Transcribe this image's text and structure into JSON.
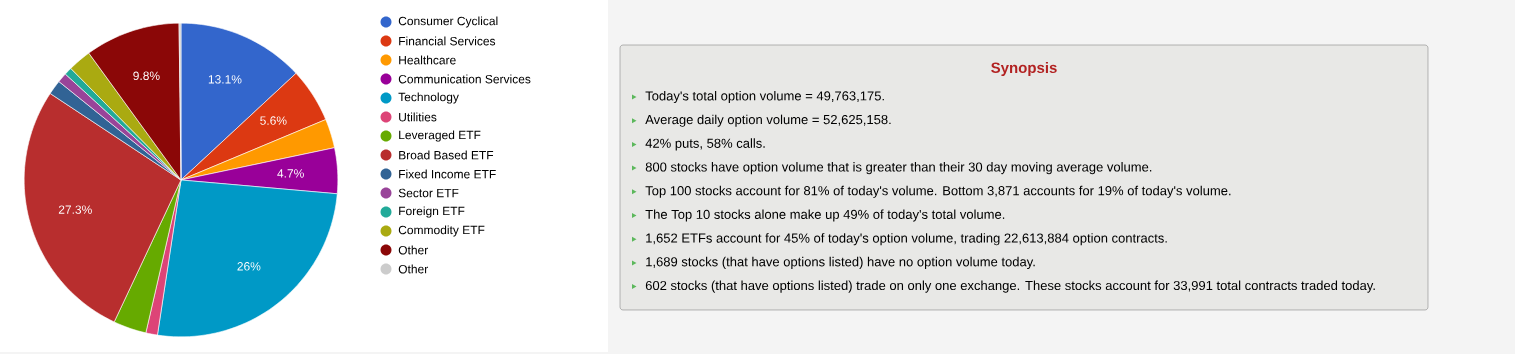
{
  "chart_data": [
    {
      "type": "pie",
      "categories": [
        "Consumer Cyclical",
        "Financial Services",
        "Healthcare",
        "Communication Services",
        "Technology",
        "Utilities",
        "Leveraged ETF",
        "Broad Based ETF",
        "Fixed Income ETF",
        "Sector ETF",
        "Foreign ETF",
        "Commodity ETF",
        "Other",
        "Other"
      ],
      "values": [
        13.1,
        5.6,
        3.0,
        4.7,
        26,
        1.2,
        3.4,
        27.3,
        1.5,
        1.0,
        0.8,
        2.4,
        9.8,
        0.2
      ],
      "colors": [
        "#3366cc",
        "#dc3912",
        "#ff9900",
        "#990099",
        "#0099c6",
        "#dd4477",
        "#66aa00",
        "#b82e2e",
        "#316395",
        "#994499",
        "#22aa99",
        "#aaaa11",
        "#8b0707",
        "#cccccc"
      ],
      "value_labels": [
        "13.1%",
        "5.6%",
        null,
        "4.7%",
        "26%",
        null,
        null,
        "27.3%",
        null,
        null,
        null,
        null,
        "9.8%",
        null
      ],
      "legend": "right"
    },
    {
      "type": "other",
      "title": "Synopsis",
      "annotations": [
        "Today's total option volume = 49,763,175.",
        "Average daily option volume = 52,625,158.",
        "42% puts, 58% calls.",
        "800 stocks have option volume that is greater than their 30 day moving average volume.",
        "Top 100 stocks account for 81% of today's volume. Bottom 3,871 accounts for 19% of today's volume.",
        "The Top 10 stocks alone make up 49% of today's total volume.",
        "1,652 ETFs account for 45% of today's option volume, trading 22,613,884 option contracts.",
        "1,689 stocks (that have options listed) have no option volume today.",
        "602 stocks (that have options listed) trade on only one exchange. These stocks account for 33,991 total contracts traded today."
      ]
    }
  ]
}
